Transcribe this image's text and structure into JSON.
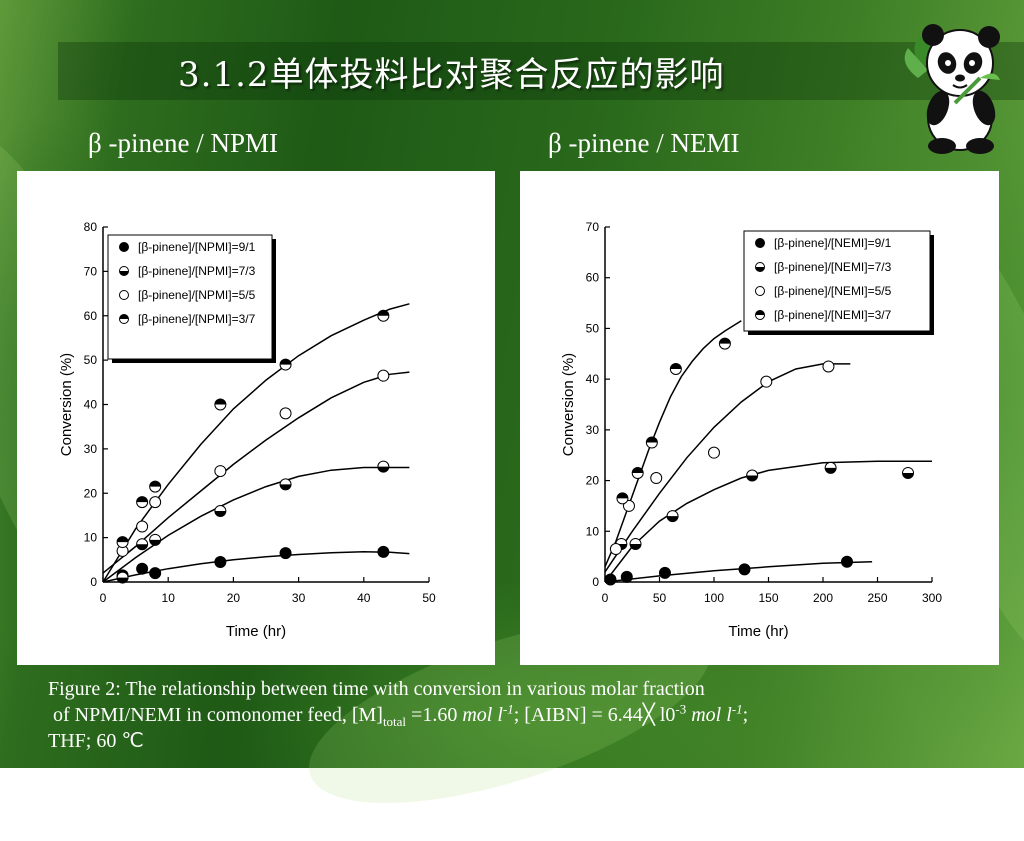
{
  "slide": {
    "title": "3.1.2单体投料比对聚合反应的影响",
    "left_label": "β -pinene / NPMI",
    "right_label": "β -pinene / NEMI",
    "caption": {
      "line1": "Figure 2: The relationship between time with conversion in various molar fraction",
      "line2_a": " of NPMI/NEMI in comonomer feed, [M]",
      "line2_sub": "total",
      "line2_b": " =1.60 ",
      "line2_unit1": "mol l",
      "line2_sup1": "-1",
      "line2_c": "; [AIBN] = 6.44╳ l0",
      "line2_sup2": "-3",
      "line2_d": " ",
      "line2_unit2": "mol l",
      "line2_sup3": "-1",
      "line2_e": ";",
      "line3": "THF; 60 ℃"
    }
  },
  "colors": {
    "title_text": "#ffffff",
    "panel_bg": "#ffffff",
    "ink": "#000000"
  },
  "chart_data": [
    {
      "type": "scatter",
      "xlabel": "Time (hr)",
      "ylabel": "Conversion (%)",
      "xlim": [
        0,
        50
      ],
      "ylim": [
        0,
        80
      ],
      "x_ticks": [
        0,
        10,
        20,
        30,
        40,
        50
      ],
      "y_ticks": [
        0,
        10,
        20,
        30,
        40,
        50,
        60,
        70,
        80
      ],
      "legend_position": "top-left",
      "series": [
        {
          "name": "[β-pinene]/[NPMI]=9/1",
          "marker": "filled",
          "points": [
            [
              3,
              1.5
            ],
            [
              6,
              3
            ],
            [
              8,
              2
            ],
            [
              18,
              4.5
            ],
            [
              28,
              6.5
            ],
            [
              43,
              6.8
            ]
          ],
          "fit": [
            [
              0,
              0
            ],
            [
              5,
              1.6
            ],
            [
              10,
              3
            ],
            [
              15,
              4.1
            ],
            [
              20,
              5
            ],
            [
              25,
              5.7
            ],
            [
              30,
              6.2
            ],
            [
              35,
              6.6
            ],
            [
              40,
              6.8
            ],
            [
              44,
              6.7
            ],
            [
              47,
              6.4
            ]
          ]
        },
        {
          "name": "[β-pinene]/[NPMI]=7/3",
          "marker": "bottom-half",
          "points": [
            [
              3,
              1
            ],
            [
              6,
              8.5
            ],
            [
              8,
              9.5
            ],
            [
              18,
              16
            ],
            [
              28,
              22
            ],
            [
              43,
              26
            ]
          ],
          "fit": [
            [
              0,
              0
            ],
            [
              5,
              5.5
            ],
            [
              10,
              10.5
            ],
            [
              15,
              14.8
            ],
            [
              20,
              18.5
            ],
            [
              25,
              21.5
            ],
            [
              30,
              23.8
            ],
            [
              35,
              25.2
            ],
            [
              40,
              25.8
            ],
            [
              47,
              25.8
            ]
          ]
        },
        {
          "name": "[β-pinene]/[NPMI]=5/5",
          "marker": "open",
          "points": [
            [
              3,
              7
            ],
            [
              6,
              12.5
            ],
            [
              8,
              18
            ],
            [
              18,
              25
            ],
            [
              28,
              38
            ],
            [
              43,
              46.5
            ]
          ],
          "fit": [
            [
              0,
              2
            ],
            [
              5,
              8
            ],
            [
              10,
              14.5
            ],
            [
              15,
              20.5
            ],
            [
              20,
              26.5
            ],
            [
              25,
              32
            ],
            [
              30,
              37
            ],
            [
              35,
              41.5
            ],
            [
              40,
              45
            ],
            [
              44,
              46.8
            ],
            [
              47,
              47.3
            ]
          ]
        },
        {
          "name": "[β-pinene]/[NPMI]=3/7",
          "marker": "top-half",
          "points": [
            [
              3,
              9
            ],
            [
              6,
              18
            ],
            [
              8,
              21.5
            ],
            [
              18,
              40
            ],
            [
              28,
              49
            ],
            [
              43,
              60
            ]
          ],
          "fit": [
            [
              0,
              0
            ],
            [
              5,
              12
            ],
            [
              10,
              22
            ],
            [
              15,
              31
            ],
            [
              20,
              39
            ],
            [
              25,
              45.5
            ],
            [
              30,
              51
            ],
            [
              35,
              55.5
            ],
            [
              40,
              59
            ],
            [
              44,
              61.5
            ],
            [
              47,
              62.7
            ]
          ]
        }
      ]
    },
    {
      "type": "scatter",
      "xlabel": "Time (hr)",
      "ylabel": "Conversion (%)",
      "xlim": [
        0,
        300
      ],
      "ylim": [
        0,
        70
      ],
      "x_ticks": [
        0,
        50,
        100,
        150,
        200,
        250,
        300
      ],
      "y_ticks": [
        0,
        10,
        20,
        30,
        40,
        50,
        60,
        70
      ],
      "legend_position": "top-right",
      "series": [
        {
          "name": "[β-pinene]/[NEMI]=9/1",
          "marker": "filled",
          "points": [
            [
              5,
              0.5
            ],
            [
              20,
              1
            ],
            [
              55,
              1.8
            ],
            [
              128,
              2.5
            ],
            [
              222,
              4
            ]
          ],
          "fit": [
            [
              0,
              0
            ],
            [
              50,
              1.2
            ],
            [
              100,
              2.2
            ],
            [
              150,
              3
            ],
            [
              200,
              3.7
            ],
            [
              245,
              4
            ]
          ]
        },
        {
          "name": "[β-pinene]/[NEMI]=7/3",
          "marker": "bottom-half",
          "points": [
            [
              15,
              7.5
            ],
            [
              28,
              7.5
            ],
            [
              62,
              13
            ],
            [
              135,
              21
            ],
            [
              207,
              22.5
            ],
            [
              278,
              21.5
            ]
          ],
          "fit": [
            [
              0,
              0
            ],
            [
              25,
              7
            ],
            [
              50,
              12
            ],
            [
              75,
              15.5
            ],
            [
              100,
              18.2
            ],
            [
              125,
              20.5
            ],
            [
              150,
              22
            ],
            [
              200,
              23.5
            ],
            [
              250,
              23.8
            ],
            [
              300,
              23.8
            ]
          ]
        },
        {
          "name": "[β-pinene]/[NEMI]=5/5",
          "marker": "open",
          "points": [
            [
              10,
              6.5
            ],
            [
              22,
              15
            ],
            [
              47,
              20.5
            ],
            [
              100,
              25.5
            ],
            [
              148,
              39.5
            ],
            [
              205,
              42.5
            ]
          ],
          "fit": [
            [
              0,
              2
            ],
            [
              25,
              10
            ],
            [
              50,
              17.5
            ],
            [
              75,
              24.5
            ],
            [
              100,
              30.5
            ],
            [
              125,
              35.5
            ],
            [
              150,
              39.5
            ],
            [
              175,
              42
            ],
            [
              200,
              43
            ],
            [
              225,
              43
            ]
          ]
        },
        {
          "name": "[β-pinene]/[NEMI]=3/7",
          "marker": "top-half",
          "points": [
            [
              16,
              16.5
            ],
            [
              30,
              21.5
            ],
            [
              43,
              27.5
            ],
            [
              65,
              42
            ],
            [
              110,
              47
            ]
          ],
          "fit": [
            [
              0,
              3
            ],
            [
              10,
              8
            ],
            [
              20,
              14
            ],
            [
              30,
              20
            ],
            [
              40,
              26
            ],
            [
              50,
              31.5
            ],
            [
              60,
              36.5
            ],
            [
              70,
              40.5
            ],
            [
              80,
              43.5
            ],
            [
              90,
              46
            ],
            [
              100,
              48
            ],
            [
              110,
              49.5
            ],
            [
              125,
              51.5
            ]
          ]
        }
      ]
    }
  ]
}
